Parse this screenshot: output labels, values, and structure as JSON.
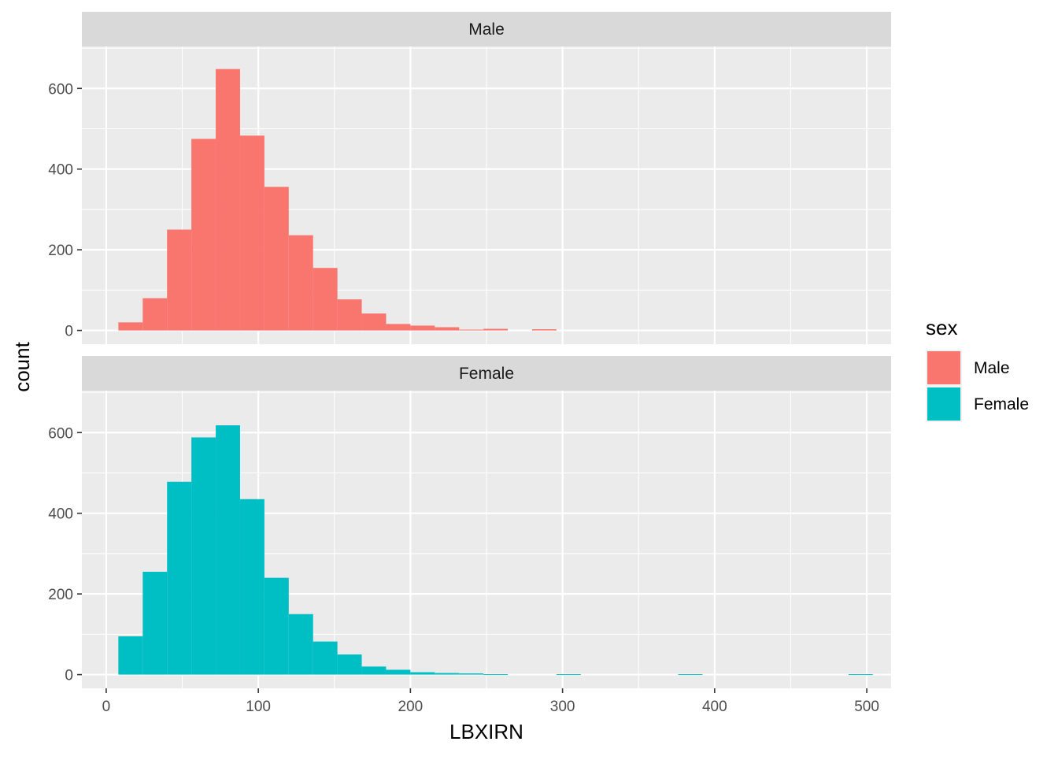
{
  "chart_data": {
    "type": "bar",
    "subtype": "histogram",
    "faceting": "rows by sex",
    "xlabel": "LBXIRN",
    "ylabel": "count",
    "xlim": [
      -16,
      516
    ],
    "ylim": [
      -34,
      704
    ],
    "x_breaks": [
      0,
      100,
      200,
      300,
      400,
      500
    ],
    "y_breaks": [
      0,
      200,
      400,
      600
    ],
    "grid": true,
    "bin_width": 16,
    "bin_starts": [
      8,
      24,
      40,
      56,
      72,
      88,
      104,
      120,
      136,
      152,
      168,
      184,
      200,
      216,
      232,
      248,
      264,
      280,
      296,
      312,
      328,
      344,
      360,
      376,
      392,
      408,
      424,
      440,
      456,
      472,
      488
    ],
    "legend": {
      "title": "sex",
      "position": "right",
      "entries": [
        {
          "label": "Male",
          "color": "#F8766D"
        },
        {
          "label": "Female",
          "color": "#00BFC4"
        }
      ]
    },
    "panels": [
      {
        "strip": "Male",
        "color": "#F8766D",
        "counts": [
          20,
          80,
          250,
          475,
          648,
          483,
          356,
          236,
          155,
          77,
          42,
          16,
          12,
          8,
          2,
          4,
          0,
          3,
          0,
          0,
          0,
          0,
          0,
          0,
          0,
          0,
          0,
          0,
          0,
          0,
          0
        ]
      },
      {
        "strip": "Female",
        "color": "#00BFC4",
        "counts": [
          95,
          255,
          478,
          588,
          618,
          435,
          240,
          150,
          82,
          50,
          20,
          12,
          6,
          4,
          3,
          1,
          0,
          0,
          1,
          0,
          0,
          0,
          0,
          1,
          0,
          0,
          0,
          0,
          0,
          0,
          1
        ]
      }
    ]
  },
  "colors": {
    "panel_background": "#EBEBEB",
    "strip_background": "#D9D9D9",
    "grid_major": "#FFFFFF"
  }
}
